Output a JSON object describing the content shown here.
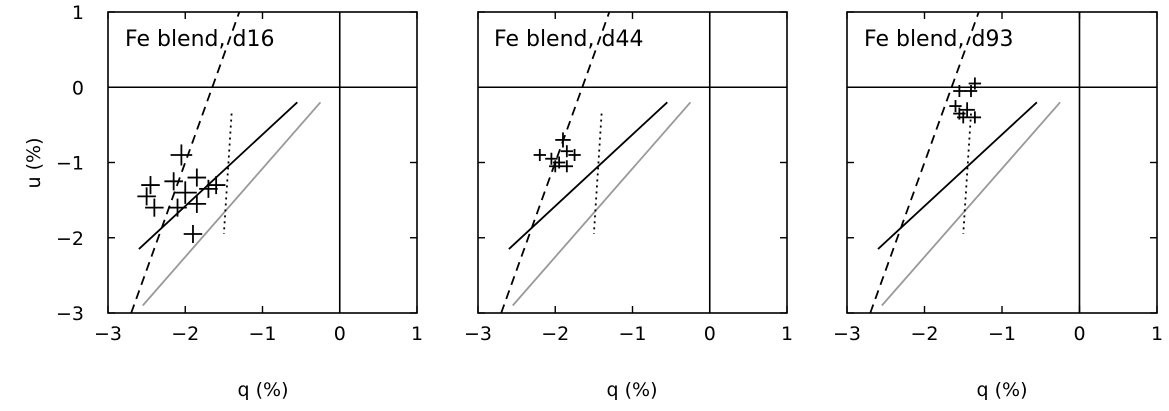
{
  "chart_data": [
    {
      "type": "scatter",
      "title": "Fe blend, d16",
      "xlabel": "q (%)",
      "ylabel": "u (%)",
      "xlim": [
        -3,
        1
      ],
      "ylim": [
        -3,
        1
      ],
      "xticks": [
        "−3",
        "−2",
        "−1",
        "0",
        "1"
      ],
      "yticks": [
        "1",
        "0",
        "−1",
        "−2",
        "−3"
      ],
      "show_ylabel": true,
      "crosshair": [
        0,
        0
      ],
      "reference_lines": {
        "solid_black": [
          [
            -2.6,
            -2.15
          ],
          [
            -0.55,
            -0.2
          ]
        ],
        "solid_gray": [
          [
            -2.55,
            -2.9
          ],
          [
            -0.25,
            -0.2
          ]
        ],
        "dashed": [
          [
            -2.7,
            -3.0
          ],
          [
            -1.3,
            1.0
          ]
        ],
        "dotted": [
          [
            -1.4,
            -0.35
          ],
          [
            -1.5,
            -1.95
          ]
        ]
      },
      "points": [
        {
          "q": -2.45,
          "u": -1.3,
          "eq": 0.12,
          "eu": 0.12
        },
        {
          "q": -2.5,
          "u": -1.45,
          "eq": 0.12,
          "eu": 0.12
        },
        {
          "q": -2.4,
          "u": -1.6,
          "eq": 0.12,
          "eu": 0.12
        },
        {
          "q": -2.05,
          "u": -0.9,
          "eq": 0.14,
          "eu": 0.14
        },
        {
          "q": -2.15,
          "u": -1.25,
          "eq": 0.12,
          "eu": 0.12
        },
        {
          "q": -2.0,
          "u": -1.4,
          "eq": 0.15,
          "eu": 0.15
        },
        {
          "q": -2.1,
          "u": -1.6,
          "eq": 0.12,
          "eu": 0.12
        },
        {
          "q": -1.85,
          "u": -1.2,
          "eq": 0.12,
          "eu": 0.12
        },
        {
          "q": -1.7,
          "u": -1.35,
          "eq": 0.12,
          "eu": 0.12
        },
        {
          "q": -1.6,
          "u": -1.3,
          "eq": 0.12,
          "eu": 0.12
        },
        {
          "q": -1.85,
          "u": -1.55,
          "eq": 0.12,
          "eu": 0.12
        },
        {
          "q": -1.9,
          "u": -1.95,
          "eq": 0.12,
          "eu": 0.12
        }
      ]
    },
    {
      "type": "scatter",
      "title": "Fe blend, d44",
      "xlabel": "q (%)",
      "ylabel": "",
      "xlim": [
        -3,
        1
      ],
      "ylim": [
        -3,
        1
      ],
      "xticks": [
        "−3",
        "−2",
        "−1",
        "0",
        "1"
      ],
      "yticks": [],
      "show_ylabel": false,
      "crosshair": [
        0,
        0
      ],
      "reference_lines": {
        "solid_black": [
          [
            -2.6,
            -2.15
          ],
          [
            -0.55,
            -0.2
          ]
        ],
        "solid_gray": [
          [
            -2.55,
            -2.9
          ],
          [
            -0.25,
            -0.2
          ]
        ],
        "dashed": [
          [
            -2.7,
            -3.0
          ],
          [
            -1.3,
            1.0
          ]
        ],
        "dotted": [
          [
            -1.4,
            -0.35
          ],
          [
            -1.5,
            -1.95
          ]
        ]
      },
      "points": [
        {
          "q": -2.2,
          "u": -0.9,
          "eq": 0.08,
          "eu": 0.08
        },
        {
          "q": -2.05,
          "u": -0.95,
          "eq": 0.08,
          "eu": 0.08
        },
        {
          "q": -1.9,
          "u": -0.7,
          "eq": 0.1,
          "eu": 0.1
        },
        {
          "q": -1.85,
          "u": -0.85,
          "eq": 0.08,
          "eu": 0.08
        },
        {
          "q": -1.75,
          "u": -0.9,
          "eq": 0.08,
          "eu": 0.08
        },
        {
          "q": -1.95,
          "u": -1.0,
          "eq": 0.08,
          "eu": 0.08
        },
        {
          "q": -2.0,
          "u": -1.05,
          "eq": 0.08,
          "eu": 0.08
        },
        {
          "q": -1.85,
          "u": -1.05,
          "eq": 0.08,
          "eu": 0.08
        }
      ]
    },
    {
      "type": "scatter",
      "title": "Fe blend, d93",
      "xlabel": "q (%)",
      "ylabel": "",
      "xlim": [
        -3,
        1
      ],
      "ylim": [
        -3,
        1
      ],
      "xticks": [
        "−3",
        "−2",
        "−1",
        "0",
        "1"
      ],
      "yticks": [],
      "show_ylabel": false,
      "crosshair": [
        0,
        0
      ],
      "reference_lines": {
        "solid_black": [
          [
            -2.6,
            -2.15
          ],
          [
            -0.55,
            -0.2
          ]
        ],
        "solid_gray": [
          [
            -2.55,
            -2.9
          ],
          [
            -0.25,
            -0.2
          ]
        ],
        "dashed": [
          [
            -2.7,
            -3.0
          ],
          [
            -1.3,
            1.0
          ]
        ],
        "dotted": [
          [
            -1.4,
            -0.35
          ],
          [
            -1.5,
            -1.95
          ]
        ]
      },
      "points": [
        {
          "q": -1.35,
          "u": 0.05,
          "eq": 0.08,
          "eu": 0.08
        },
        {
          "q": -1.4,
          "u": -0.05,
          "eq": 0.08,
          "eu": 0.08
        },
        {
          "q": -1.55,
          "u": -0.05,
          "eq": 0.08,
          "eu": 0.08
        },
        {
          "q": -1.6,
          "u": -0.25,
          "eq": 0.08,
          "eu": 0.08
        },
        {
          "q": -1.45,
          "u": -0.3,
          "eq": 0.1,
          "eu": 0.1
        },
        {
          "q": -1.55,
          "u": -0.35,
          "eq": 0.08,
          "eu": 0.08
        },
        {
          "q": -1.35,
          "u": -0.4,
          "eq": 0.08,
          "eu": 0.08
        },
        {
          "q": -1.5,
          "u": -0.4,
          "eq": 0.08,
          "eu": 0.08
        }
      ]
    }
  ]
}
